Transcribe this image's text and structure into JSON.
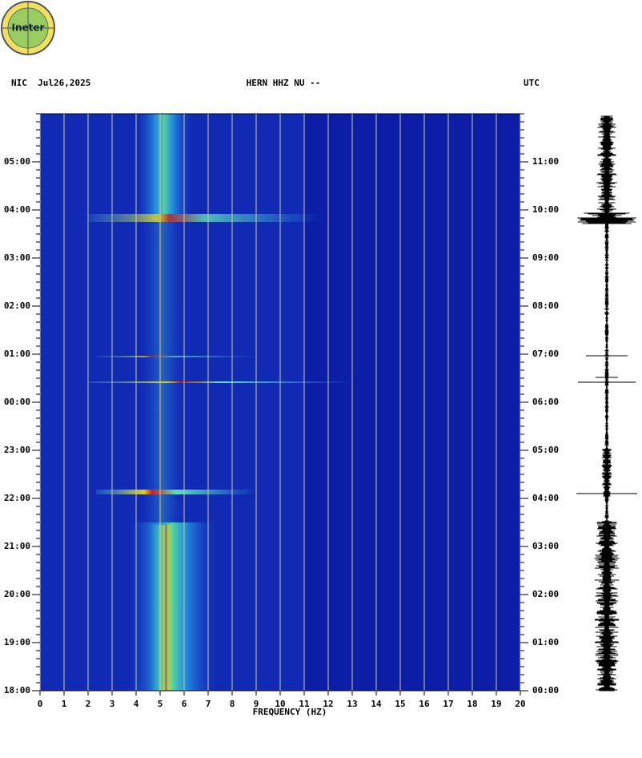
{
  "logo": "Ineter",
  "chart_data": {
    "type": "spectrogram",
    "header_left": "NIC  Jul26,2025",
    "title": "HERN HHZ NU --",
    "header_right": "UTC",
    "xlabel": "FREQUENCY (HZ)",
    "xlim": [
      0,
      20
    ],
    "xticks": [
      0,
      1,
      2,
      3,
      4,
      5,
      6,
      7,
      8,
      9,
      10,
      11,
      12,
      13,
      14,
      15,
      16,
      17,
      18,
      19,
      20
    ],
    "ylim": [
      0,
      12
    ],
    "yticks": [
      {
        "value": 0,
        "label": "18:00"
      },
      {
        "value": 1,
        "label": "19:00"
      },
      {
        "value": 2,
        "label": "20:00"
      },
      {
        "value": 3,
        "label": "21:00"
      },
      {
        "value": 4,
        "label": "22:00"
      },
      {
        "value": 5,
        "label": "23:00"
      },
      {
        "value": 6,
        "label": "00:00"
      },
      {
        "value": 7,
        "label": "01:00"
      },
      {
        "value": 8,
        "label": "02:00"
      },
      {
        "value": 9,
        "label": "03:00"
      },
      {
        "value": 10,
        "label": "04:00"
      },
      {
        "value": 11,
        "label": "05:00"
      }
    ],
    "y2lim": [
      0,
      12
    ],
    "y2ticks": [
      {
        "value": 0,
        "label": "00:00"
      },
      {
        "value": 1,
        "label": "01:00"
      },
      {
        "value": 2,
        "label": "02:00"
      },
      {
        "value": 3,
        "label": "03:00"
      },
      {
        "value": 4,
        "label": "04:00"
      },
      {
        "value": 5,
        "label": "05:00"
      },
      {
        "value": 6,
        "label": "06:00"
      },
      {
        "value": 7,
        "label": "07:00"
      },
      {
        "value": 8,
        "label": "08:00"
      },
      {
        "value": 9,
        "label": "09:00"
      },
      {
        "value": 10,
        "label": "10:00"
      },
      {
        "value": 11,
        "label": "11:00"
      }
    ],
    "grid": true
  }
}
